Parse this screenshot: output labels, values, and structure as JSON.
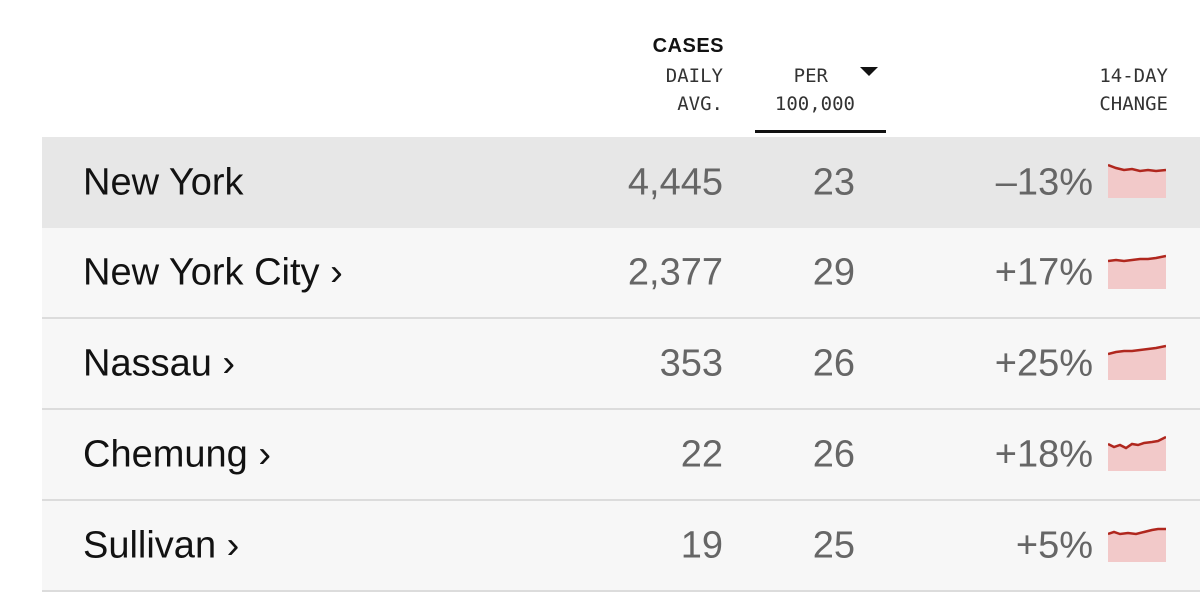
{
  "columns": {
    "cases_label": "CASES",
    "daily_avg_line1": "DAILY",
    "daily_avg_line2": "AVG.",
    "per_line1": "PER",
    "per_line2": "100,000",
    "change_line1": "14-DAY",
    "change_line2": "CHANGE",
    "sorted_by": "PER 100,000"
  },
  "colors": {
    "sparkline_line": "#b0271e",
    "sparkline_fill": "#f2c9c9",
    "highlight_row": "#e7e7e7",
    "row_bg": "#f7f7f7"
  },
  "rows": [
    {
      "name": "New York",
      "daily_avg": "4,445",
      "per_100k": "23",
      "change": "–13%"
    },
    {
      "name": "New York City ›",
      "daily_avg": "2,377",
      "per_100k": "29",
      "change": "+17%"
    },
    {
      "name": "Nassau ›",
      "daily_avg": "353",
      "per_100k": "26",
      "change": "+25%"
    },
    {
      "name": "Chemung ›",
      "daily_avg": "22",
      "per_100k": "26",
      "change": "+18%"
    },
    {
      "name": "Sullivan ›",
      "daily_avg": "19",
      "per_100k": "25",
      "change": "+5%"
    }
  ]
}
